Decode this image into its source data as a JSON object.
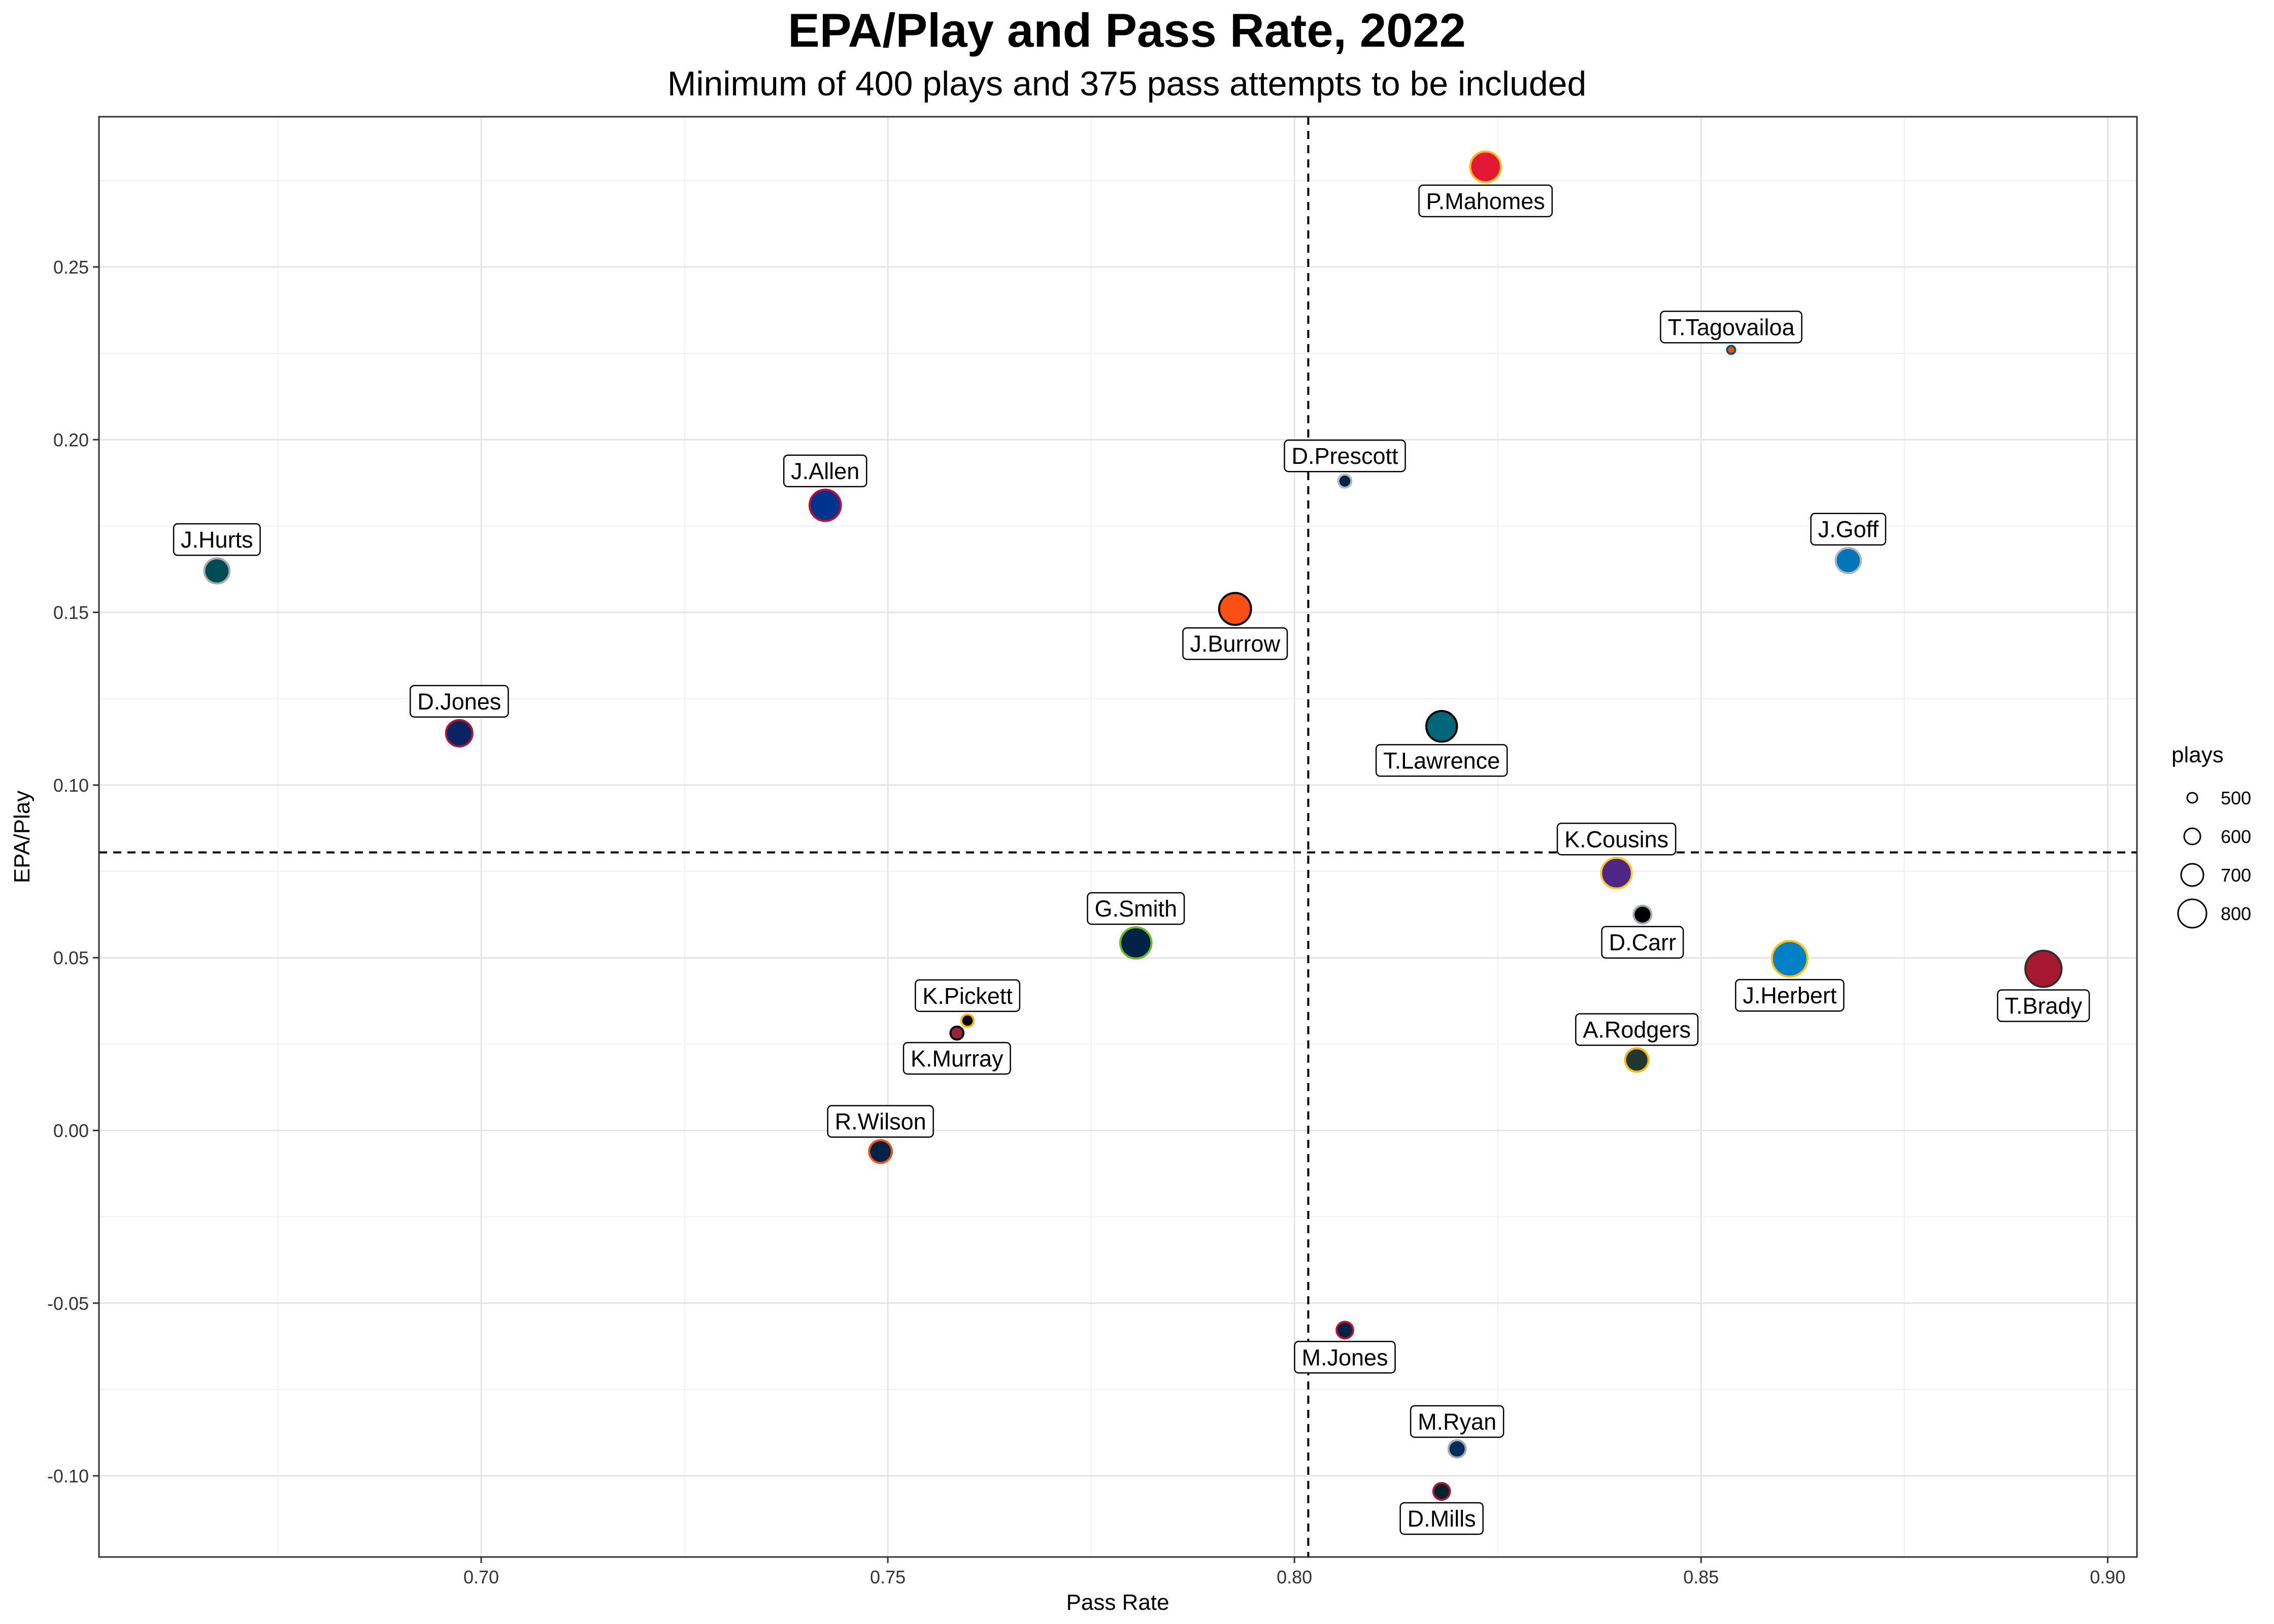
{
  "chart_data": {
    "type": "scatter",
    "title": "EPA/Play and Pass Rate, 2022",
    "subtitle": "Minimum of 400 plays and 375 pass attempts to be included",
    "xlabel": "Pass Rate",
    "ylabel": "EPA/Play",
    "xlim": [
      0.653,
      0.9036
    ],
    "ylim": [
      -0.1235,
      0.2935
    ],
    "x_ticks": [
      0.7,
      0.75,
      0.8,
      0.85,
      0.9
    ],
    "x_tick_labels": [
      "0.70",
      "0.75",
      "0.80",
      "0.85",
      "0.90"
    ],
    "y_ticks": [
      -0.1,
      -0.05,
      0.0,
      0.05,
      0.1,
      0.15,
      0.2,
      0.25
    ],
    "y_tick_labels": [
      "-0.10",
      "-0.05",
      "0.00",
      "0.05",
      "0.10",
      "0.15",
      "0.20",
      "0.25"
    ],
    "vline": 0.8017,
    "hline": 0.0805,
    "grid": true,
    "legend": {
      "title": "plays",
      "position": "right",
      "entries": [
        {
          "label": "500",
          "value": 500
        },
        {
          "label": "600",
          "value": 600
        },
        {
          "label": "700",
          "value": 700
        },
        {
          "label": "800",
          "value": 800
        }
      ]
    },
    "points": [
      {
        "name": "P.Mahomes",
        "x": 0.8235,
        "y": 0.279,
        "plays": 770,
        "fill": "#E31837",
        "stroke": "#FFB81C",
        "label_pos": "below"
      },
      {
        "name": "T.Tagovailoa",
        "x": 0.8537,
        "y": 0.226,
        "plays": 400,
        "fill": "#FC4C02",
        "stroke": "#005778",
        "label_pos": "above"
      },
      {
        "name": "D.Prescott",
        "x": 0.8062,
        "y": 0.188,
        "plays": 480,
        "fill": "#002244",
        "stroke": "#B0B7BC",
        "label_pos": "above"
      },
      {
        "name": "J.Allen",
        "x": 0.7423,
        "y": 0.181,
        "plays": 780,
        "fill": "#00338D",
        "stroke": "#C60C30",
        "label_pos": "above"
      },
      {
        "name": "J.Goff",
        "x": 0.8681,
        "y": 0.165,
        "plays": 680,
        "fill": "#0076B6",
        "stroke": "#B0B7BC",
        "label_pos": "above"
      },
      {
        "name": "J.Hurts",
        "x": 0.6675,
        "y": 0.162,
        "plays": 680,
        "fill": "#004C54",
        "stroke": "#A5ACAF",
        "label_pos": "above"
      },
      {
        "name": "J.Burrow",
        "x": 0.7927,
        "y": 0.151,
        "plays": 790,
        "fill": "#FB4F14",
        "stroke": "#000000",
        "label_pos": "below"
      },
      {
        "name": "T.Lawrence",
        "x": 0.8181,
        "y": 0.117,
        "plays": 770,
        "fill": "#006778",
        "stroke": "#000000",
        "label_pos": "below"
      },
      {
        "name": "D.Jones",
        "x": 0.6973,
        "y": 0.115,
        "plays": 700,
        "fill": "#0B2265",
        "stroke": "#A71930",
        "label_pos": "above"
      },
      {
        "name": "K.Cousins",
        "x": 0.8396,
        "y": 0.0745,
        "plays": 770,
        "fill": "#4F2683",
        "stroke": "#FFC62F",
        "label_pos": "above"
      },
      {
        "name": "D.Carr",
        "x": 0.8428,
        "y": 0.0625,
        "plays": 560,
        "fill": "#000000",
        "stroke": "#A5ACAF",
        "label_pos": "below"
      },
      {
        "name": "G.Smith",
        "x": 0.7805,
        "y": 0.0543,
        "plays": 780,
        "fill": "#002244",
        "stroke": "#69BE28",
        "label_pos": "above"
      },
      {
        "name": "J.Herbert",
        "x": 0.8609,
        "y": 0.0497,
        "plays": 850,
        "fill": "#0080C6",
        "stroke": "#FFC20E",
        "label_pos": "below"
      },
      {
        "name": "T.Brady",
        "x": 0.8921,
        "y": 0.0468,
        "plays": 860,
        "fill": "#A71930",
        "stroke": "#322F2B",
        "label_pos": "below"
      },
      {
        "name": "K.Pickett",
        "x": 0.7598,
        "y": 0.0318,
        "plays": 470,
        "fill": "#000000",
        "stroke": "#FFB612",
        "label_pos": "above"
      },
      {
        "name": "K.Murray",
        "x": 0.7585,
        "y": 0.0282,
        "plays": 480,
        "fill": "#97233F",
        "stroke": "#000000",
        "label_pos": "below"
      },
      {
        "name": "A.Rodgers",
        "x": 0.8421,
        "y": 0.0204,
        "plays": 650,
        "fill": "#203731",
        "stroke": "#FFB612",
        "label_pos": "above"
      },
      {
        "name": "R.Wilson",
        "x": 0.7491,
        "y": -0.0061,
        "plays": 640,
        "fill": "#002244",
        "stroke": "#FB4F14",
        "label_pos": "above"
      },
      {
        "name": "M.Jones",
        "x": 0.8062,
        "y": -0.0578,
        "plays": 540,
        "fill": "#002244",
        "stroke": "#C60C30",
        "label_pos": "below"
      },
      {
        "name": "M.Ryan",
        "x": 0.82,
        "y": -0.0922,
        "plays": 550,
        "fill": "#002C5F",
        "stroke": "#A2AAAD",
        "label_pos": "above"
      },
      {
        "name": "D.Mills",
        "x": 0.8181,
        "y": -0.1045,
        "plays": 540,
        "fill": "#03202F",
        "stroke": "#A71930",
        "label_pos": "below"
      }
    ]
  }
}
